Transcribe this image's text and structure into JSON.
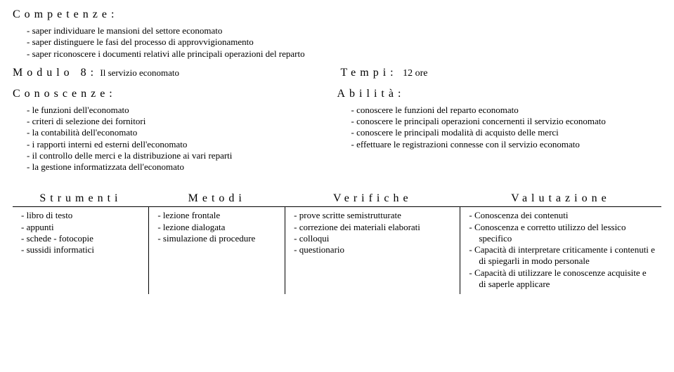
{
  "competenze": {
    "heading": "Competenze:",
    "items": [
      "saper individuare le mansioni del settore economato",
      "saper distinguere le fasi del processo di approvvigionamento",
      "saper riconoscere i documenti relativi alle  principali operazioni del reparto"
    ]
  },
  "modulo": {
    "prefix": "Modulo 8:",
    "text": "Il servizio economato"
  },
  "tempi": {
    "prefix": "Tempi:",
    "text": "12 ore"
  },
  "conoscenze": {
    "heading": "Conoscenze:",
    "items": [
      "le funzioni dell'economato",
      "criteri di selezione dei fornitori",
      "la contabilità dell'economato",
      "i rapporti interni ed esterni dell'economato",
      "il controllo delle merci e la distribuzione ai vari reparti",
      "la gestione informatizzata dell'economato"
    ]
  },
  "abilita": {
    "heading": "Abilità:",
    "items": [
      "conoscere le funzioni del reparto economato",
      "conoscere le principali operazioni concernenti il servizio economato",
      "conoscere le principali modalità di acquisto delle merci",
      "effettuare le registrazioni connesse con il servizio economato"
    ]
  },
  "table": {
    "headers": [
      "Strumenti",
      "Metodi",
      "Verifiche",
      "Valutazione"
    ],
    "strumenti": [
      "libro di testo",
      "appunti",
      "schede - fotocopie",
      "sussidi informatici"
    ],
    "metodi": [
      "lezione frontale",
      "lezione dialogata",
      "simulazione di procedure"
    ],
    "verifiche": [
      "prove scritte semistrutturate",
      "correzione dei materiali elaborati",
      "colloqui",
      "questionario"
    ],
    "valutazione": [
      "Conoscenza dei contenuti",
      "Conoscenza e corretto utilizzo  del lessico specifico",
      "Capacità di interpretare criticamente i contenuti e di spiegarli in modo personale",
      "Capacità di utilizzare le conoscenze acquisite e  di saperle applicare"
    ]
  }
}
